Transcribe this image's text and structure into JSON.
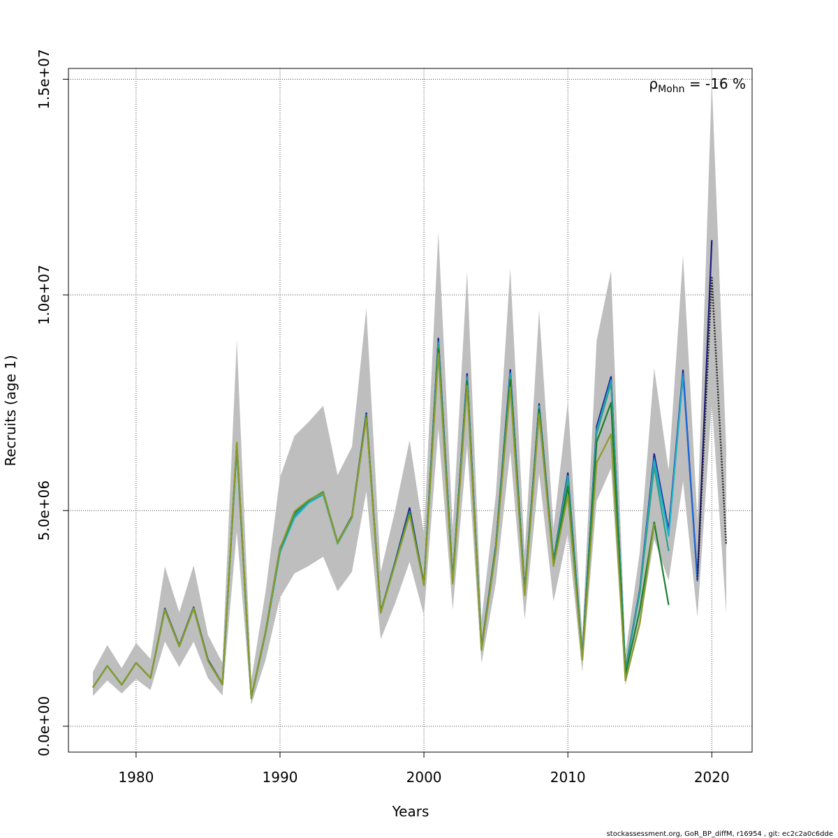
{
  "chart_data": {
    "type": "line",
    "title": "",
    "xlabel": "Years",
    "ylabel": "Recruits (age 1)",
    "xlim": [
      1975.3,
      2022.8
    ],
    "ylim": [
      -600000,
      15250000
    ],
    "x_ticks": [
      1980,
      1990,
      2000,
      2010,
      2020
    ],
    "x_tick_labels": [
      "1980",
      "1990",
      "2000",
      "2010",
      "2020"
    ],
    "y_ticks": [
      0,
      5000000,
      10000000,
      15000000
    ],
    "y_tick_labels": [
      "0.0e+00",
      "5.0e+06",
      "1.0e+07",
      "1.5e+07"
    ],
    "grid": true,
    "annotation": {
      "symbol": "ρ",
      "subscript": "Mohn",
      "text": " = -16 %"
    },
    "footer": "stockassessment.org, GoR_BP_diffM, r16954 , git: ec2c2a0c6dde",
    "confidence_band": {
      "x": [
        1977,
        1978,
        1979,
        1980,
        1981,
        1982,
        1983,
        1984,
        1985,
        1986,
        1987,
        1988,
        1989,
        1990,
        1991,
        1992,
        1993,
        1994,
        1995,
        1996,
        1997,
        1998,
        1999,
        2000,
        2001,
        2002,
        2003,
        2004,
        2005,
        2006,
        2007,
        2008,
        2009,
        2010,
        2011,
        2012,
        2013,
        2014,
        2015,
        2016,
        2017,
        2018,
        2019,
        2020,
        2021
      ],
      "lower": [
        700000,
        1060000,
        760000,
        1090000,
        840000,
        1960000,
        1370000,
        1960000,
        1110000,
        710000,
        4520000,
        500000,
        1540000,
        2980000,
        3540000,
        3720000,
        3930000,
        3130000,
        3580000,
        5440000,
        2020000,
        2850000,
        3810000,
        2570000,
        6900000,
        2700000,
        6500000,
        1460000,
        3330000,
        6380000,
        2480000,
        5860000,
        2890000,
        4480000,
        1260000,
        5220000,
        5980000,
        950000,
        2340000,
        4330000,
        3380000,
        5680000,
        2540000,
        7500000,
        2620000
      ],
      "upper": [
        1260000,
        1880000,
        1350000,
        1930000,
        1560000,
        3700000,
        2640000,
        3730000,
        2110000,
        1470000,
        8960000,
        1070000,
        3130000,
        5770000,
        6730000,
        7060000,
        7430000,
        5820000,
        6480000,
        9690000,
        3580000,
        5010000,
        6630000,
        4450000,
        11460000,
        4580000,
        10550000,
        2470000,
        5380000,
        10610000,
        4020000,
        9650000,
        4590000,
        7540000,
        2080000,
        8940000,
        10560000,
        1670000,
        4040000,
        8300000,
        5930000,
        10920000,
        4780000,
        14960000,
        6440000
      ]
    },
    "series": [
      {
        "color": "#1d1a84",
        "x": [
          1977,
          1978,
          1979,
          1980,
          1981,
          1982,
          1983,
          1984,
          1985,
          1986,
          1987,
          1988,
          1989,
          1990,
          1991,
          1992,
          1993,
          1994,
          1995,
          1996,
          1997,
          1998,
          1999,
          2000,
          2001,
          2002,
          2003,
          2004,
          2005,
          2006,
          2007,
          2008,
          2009,
          2010,
          2011,
          2012,
          2013,
          2014,
          2015,
          2016,
          2017,
          2018,
          2019,
          2020
        ],
        "values": [
          900000,
          1400000,
          960000,
          1470000,
          1120000,
          2730000,
          1870000,
          2760000,
          1540000,
          980000,
          6550000,
          660000,
          2200000,
          4130000,
          4900000,
          5220000,
          5420000,
          4260000,
          4870000,
          7260000,
          2650000,
          3820000,
          5060000,
          3300000,
          8990000,
          3400000,
          8170000,
          1820000,
          4200000,
          8260000,
          3140000,
          7470000,
          3840000,
          5870000,
          1620000,
          6950000,
          8100000,
          1310000,
          3170000,
          6310000,
          4540000,
          8250000,
          3400000,
          11270000
        ]
      },
      {
        "color": "#1f6bd6",
        "x": [
          1977,
          1978,
          1979,
          1980,
          1981,
          1982,
          1983,
          1984,
          1985,
          1986,
          1987,
          1988,
          1989,
          1990,
          1991,
          1992,
          1993,
          1994,
          1995,
          1996,
          1997,
          1998,
          1999,
          2000,
          2001,
          2002,
          2003,
          2004,
          2005,
          2006,
          2007,
          2008,
          2009,
          2010,
          2011,
          2012,
          2013,
          2014,
          2015,
          2016,
          2017,
          2018,
          2019
        ],
        "values": [
          900000,
          1400000,
          960000,
          1470000,
          1120000,
          2710000,
          1860000,
          2740000,
          1520000,
          970000,
          6480000,
          650000,
          2170000,
          4060000,
          4860000,
          5200000,
          5380000,
          4240000,
          4840000,
          7220000,
          2640000,
          3800000,
          4980000,
          3290000,
          8920000,
          3380000,
          8110000,
          1800000,
          4170000,
          8200000,
          3110000,
          7430000,
          3820000,
          5810000,
          1610000,
          6880000,
          8040000,
          1300000,
          3150000,
          6220000,
          4470000,
          8180000,
          3360000
        ]
      },
      {
        "color": "#20b3c9",
        "x": [
          1977,
          1978,
          1979,
          1980,
          1981,
          1982,
          1983,
          1984,
          1985,
          1986,
          1987,
          1988,
          1989,
          1990,
          1991,
          1992,
          1993,
          1994,
          1995,
          1996,
          1997,
          1998,
          1999,
          2000,
          2001,
          2002,
          2003,
          2004,
          2005,
          2006,
          2007,
          2008,
          2009,
          2010,
          2011,
          2012,
          2013,
          2014,
          2015,
          2016,
          2017,
          2018
        ],
        "values": [
          900000,
          1400000,
          960000,
          1470000,
          1120000,
          2700000,
          1850000,
          2730000,
          1510000,
          970000,
          6450000,
          650000,
          2160000,
          4030000,
          4830000,
          5180000,
          5370000,
          4230000,
          4830000,
          7200000,
          2630000,
          3790000,
          4950000,
          3280000,
          8880000,
          3370000,
          8080000,
          1790000,
          4160000,
          8160000,
          3100000,
          7410000,
          3810000,
          5780000,
          1610000,
          6830000,
          7990000,
          1290000,
          3130000,
          6150000,
          4410000,
          8110000
        ]
      },
      {
        "color": "#2ba38d",
        "x": [
          1977,
          1978,
          1979,
          1980,
          1981,
          1982,
          1983,
          1984,
          1985,
          1986,
          1987,
          1988,
          1989,
          1990,
          1991,
          1992,
          1993,
          1994,
          1995,
          1996,
          1997,
          1998,
          1999,
          2000,
          2001,
          2002,
          2003,
          2004,
          2005,
          2006,
          2007,
          2008,
          2009,
          2010,
          2011,
          2012,
          2013,
          2014,
          2015,
          2016,
          2017
        ],
        "values": [
          900000,
          1400000,
          960000,
          1470000,
          1120000,
          2710000,
          1850000,
          2740000,
          1520000,
          970000,
          6500000,
          650000,
          2180000,
          4080000,
          4900000,
          5220000,
          5410000,
          4250000,
          4850000,
          7210000,
          2640000,
          3790000,
          4970000,
          3290000,
          8850000,
          3360000,
          8060000,
          1790000,
          4150000,
          8120000,
          3090000,
          7390000,
          3800000,
          5740000,
          1600000,
          6780000,
          7960000,
          1290000,
          3100000,
          6020000,
          4060000
        ]
      },
      {
        "color": "#1a7f2e",
        "x": [
          1977,
          1978,
          1979,
          1980,
          1981,
          1982,
          1983,
          1984,
          1985,
          1986,
          1987,
          1988,
          1989,
          1990,
          1991,
          1992,
          1993,
          1994,
          1995,
          1996,
          1997,
          1998,
          1999,
          2000,
          2001,
          2002,
          2003,
          2004,
          2005,
          2006,
          2007,
          2008,
          2009,
          2010,
          2011,
          2012,
          2013,
          2014,
          2015,
          2016,
          2017
        ],
        "values": [
          900000,
          1400000,
          960000,
          1470000,
          1120000,
          2700000,
          1850000,
          2730000,
          1520000,
          970000,
          6520000,
          650000,
          2190000,
          4100000,
          4950000,
          5240000,
          5430000,
          4260000,
          4860000,
          7190000,
          2640000,
          3780000,
          4940000,
          3280000,
          8750000,
          3340000,
          8000000,
          1780000,
          4120000,
          8030000,
          3070000,
          7350000,
          3770000,
          5560000,
          1580000,
          6590000,
          7500000,
          1200000,
          2700000,
          4730000,
          2810000
        ]
      },
      {
        "color": "#8c9b2a",
        "x": [
          1977,
          1978,
          1979,
          1980,
          1981,
          1982,
          1983,
          1984,
          1985,
          1986,
          1987,
          1988,
          1989,
          1990,
          1991,
          1992,
          1993,
          1994,
          1995,
          1996,
          1997,
          1998,
          1999,
          2000,
          2001,
          2002,
          2003,
          2004,
          2005,
          2006,
          2007,
          2008,
          2009,
          2010,
          2011,
          2012,
          2013,
          2014,
          2015,
          2016
        ],
        "values": [
          900000,
          1400000,
          960000,
          1470000,
          1120000,
          2700000,
          1850000,
          2730000,
          1510000,
          970000,
          6580000,
          650000,
          2190000,
          4120000,
          4980000,
          5250000,
          5410000,
          4250000,
          4850000,
          7150000,
          2630000,
          3760000,
          4900000,
          3260000,
          8640000,
          3300000,
          7900000,
          1760000,
          4080000,
          7860000,
          3030000,
          7240000,
          3710000,
          5350000,
          1540000,
          6110000,
          6770000,
          1060000,
          2380000,
          4690000
        ]
      },
      {
        "color": "#222222",
        "dashed": true,
        "x": [
          2019,
          2020,
          2021
        ],
        "values": [
          3400000,
          10400000,
          4200000
        ]
      }
    ]
  }
}
